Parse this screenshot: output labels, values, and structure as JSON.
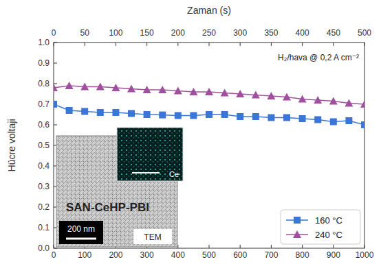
{
  "chart_data": {
    "type": "line",
    "x2label": "Zaman (s)",
    "ylabel": "Hücre voltaji",
    "annotations": [
      "H₂/hava @ 0,2 A cm⁻²"
    ],
    "inset": {
      "title": "SAN-CeHP-PBI",
      "scale_bar": "200 nm",
      "label": "TEM",
      "element": "Ce"
    },
    "x": [
      0,
      50,
      100,
      150,
      200,
      250,
      300,
      350,
      400,
      450,
      500,
      550,
      600,
      650,
      700,
      750,
      800,
      850,
      900,
      950,
      1000
    ],
    "series": [
      {
        "name": "160 °C",
        "color": "#3a75d8",
        "marker": "square",
        "values": [
          0.7,
          0.67,
          0.665,
          0.66,
          0.66,
          0.655,
          0.65,
          0.648,
          0.645,
          0.645,
          0.65,
          0.65,
          0.64,
          0.64,
          0.635,
          0.635,
          0.63,
          0.625,
          0.615,
          0.62,
          0.6
        ]
      },
      {
        "name": "240 °C",
        "color": "#a0509e",
        "marker": "triangle",
        "values": [
          0.78,
          0.79,
          0.785,
          0.785,
          0.78,
          0.775,
          0.77,
          0.77,
          0.765,
          0.76,
          0.76,
          0.755,
          0.75,
          0.745,
          0.74,
          0.735,
          0.725,
          0.72,
          0.715,
          0.705,
          0.7
        ]
      }
    ],
    "xlim": [
      0,
      1000
    ],
    "xticks": [
      0,
      100,
      200,
      300,
      400,
      500,
      600,
      700,
      800,
      900,
      1000
    ],
    "x2lim": [
      0,
      500
    ],
    "x2ticks": [
      0,
      50,
      100,
      150,
      200,
      250,
      300,
      350,
      400,
      450,
      500
    ],
    "ylim": [
      0,
      1
    ],
    "yticks": [
      {
        "value": 0,
        "label": "0.0"
      },
      0.1,
      0.2,
      0.3,
      0.4,
      0.5,
      0.6,
      0.7,
      0.8,
      0.9,
      {
        "value": 1,
        "label": "1.0"
      }
    ],
    "grid": false,
    "legend": "lower right"
  }
}
